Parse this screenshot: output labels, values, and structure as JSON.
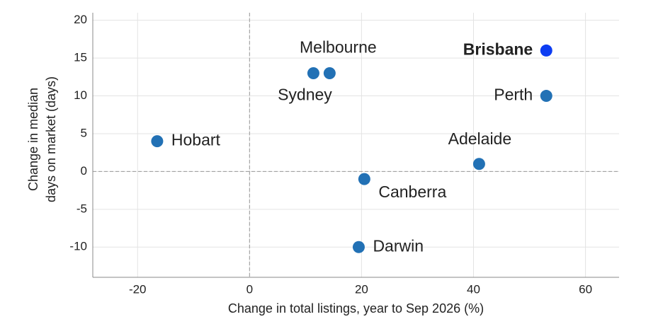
{
  "chart_data": {
    "type": "scatter",
    "xlabel": "Change in total listings, year to Sep 2026 (%)",
    "ylabel": [
      "Change in median",
      "days on market (days)"
    ],
    "xlim": [
      -28,
      66
    ],
    "ylim": [
      -14,
      21
    ],
    "xticks": [
      -20,
      0,
      20,
      40,
      60
    ],
    "yticks": [
      -10,
      -5,
      0,
      5,
      10,
      15,
      20
    ],
    "grid": true,
    "reference_lines": {
      "x": 0,
      "y": 0
    },
    "points": [
      {
        "label": "Brisbane",
        "x": 53,
        "y": 16,
        "color": "#0d3df2",
        "bold": true
      },
      {
        "label": "Perth",
        "x": 53,
        "y": 10,
        "color": "#2271b5",
        "bold": false
      },
      {
        "label": "Melbourne",
        "x": 14.3,
        "y": 13,
        "color": "#2271b5",
        "bold": false
      },
      {
        "label": "Sydney",
        "x": 11.4,
        "y": 13,
        "color": "#2271b5",
        "bold": false
      },
      {
        "label": "Hobart",
        "x": -16.5,
        "y": 4,
        "color": "#2271b5",
        "bold": false
      },
      {
        "label": "Adelaide",
        "x": 41,
        "y": 1,
        "color": "#2271b5",
        "bold": false
      },
      {
        "label": "Canberra",
        "x": 20.5,
        "y": -1,
        "color": "#2271b5",
        "bold": false
      },
      {
        "label": "Darwin",
        "x": 19.5,
        "y": -10,
        "color": "#2271b5",
        "bold": false
      }
    ]
  }
}
